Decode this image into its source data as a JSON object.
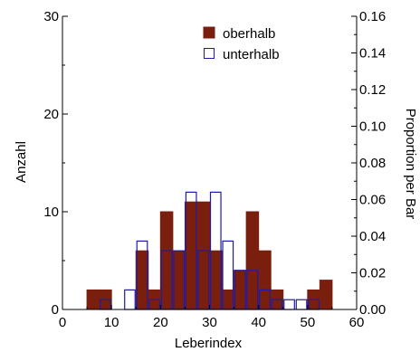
{
  "chart_data": {
    "type": "bar",
    "xlabel": "Leberindex",
    "ylabel": "Anzahl",
    "y2label": "Proportion per Bar",
    "xlim": [
      0,
      60
    ],
    "ylim": [
      0,
      30
    ],
    "y2lim": [
      0,
      0.16
    ],
    "xticks": [
      "0",
      "10",
      "20",
      "30",
      "40",
      "50",
      "60"
    ],
    "yticks": [
      "0",
      "10",
      "20",
      "30"
    ],
    "y2ticks": [
      "0.00",
      "0.02",
      "0.04",
      "0.06",
      "0.08",
      "0.10",
      "0.12",
      "0.14",
      "0.16"
    ],
    "grid": false,
    "legend_position": "top-right",
    "bin_edges": [
      0,
      2.5,
      5,
      7.5,
      10,
      12.5,
      15,
      17.5,
      20,
      22.5,
      25,
      27.5,
      30,
      32.5,
      35,
      37.5,
      40,
      42.5,
      45,
      47.5,
      50,
      52.5,
      55,
      57.5,
      60
    ],
    "series": [
      {
        "name": "oberhalb",
        "color": "#7a1e0e",
        "style": "filled",
        "values": [
          0,
          0,
          2,
          2,
          0,
          0,
          6,
          2,
          10,
          6,
          11,
          11,
          6,
          2,
          4,
          10,
          6,
          2,
          0,
          0,
          2,
          3,
          0,
          0
        ]
      },
      {
        "name": "unterhalb",
        "color": "#1c1ca8",
        "style": "outline",
        "values": [
          0,
          0,
          0,
          1,
          0,
          2,
          7,
          1,
          6,
          6,
          12,
          6,
          12,
          7,
          4,
          4,
          2,
          1,
          1,
          1,
          1,
          0,
          0,
          0
        ]
      }
    ]
  }
}
